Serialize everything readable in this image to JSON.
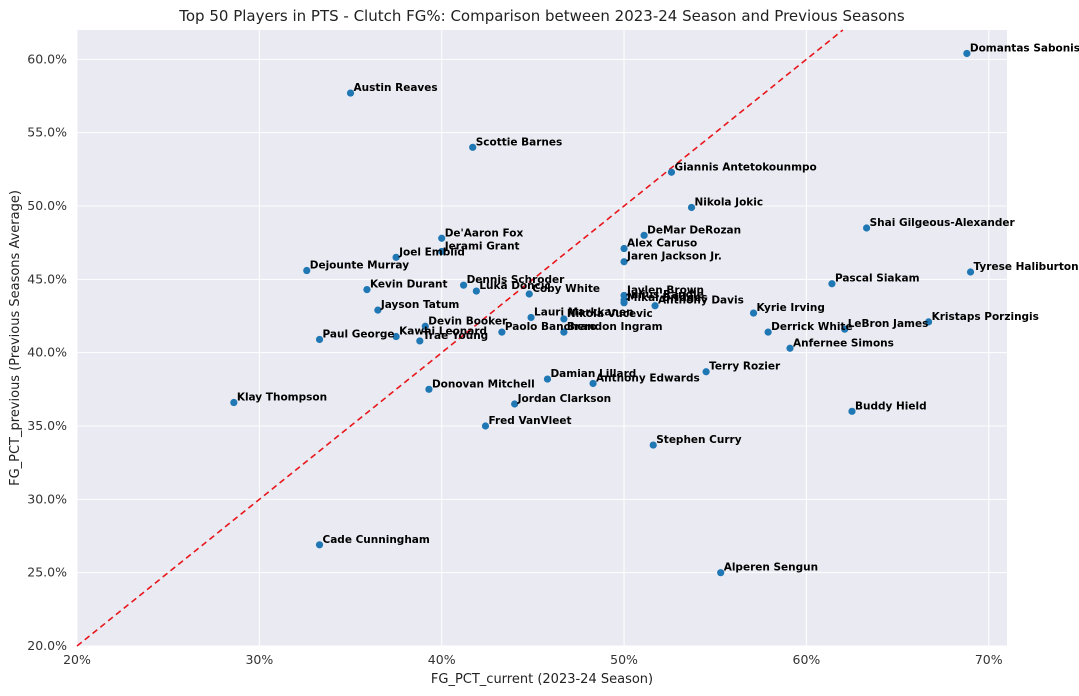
{
  "chart_data": {
    "type": "scatter",
    "title": "Top 50 Players in PTS - Clutch FG%: Comparison between 2023-24 Season and Previous Seasons",
    "xlabel": "FG_PCT_current (2023-24 Season)",
    "ylabel": "FG_PCT_previous (Previous Seasons Average)",
    "xlim": [
      0.2,
      0.71
    ],
    "ylim": [
      0.2,
      0.62
    ],
    "x_ticks": [
      0.2,
      0.3,
      0.4,
      0.5,
      0.6,
      0.7
    ],
    "x_tick_labels": [
      "20%",
      "30%",
      "40%",
      "50%",
      "60%",
      "70%"
    ],
    "y_ticks": [
      0.2,
      0.25,
      0.3,
      0.35,
      0.4,
      0.45,
      0.5,
      0.55,
      0.6
    ],
    "y_tick_labels": [
      "20.0%",
      "25.0%",
      "30.0%",
      "35.0%",
      "40.0%",
      "45.0%",
      "50.0%",
      "55.0%",
      "60.0%"
    ],
    "grid": true,
    "reference_line": {
      "label": "y = x",
      "color": "#e8161b",
      "style": "dashed"
    },
    "point_color": "#1f77b4",
    "background": "#eaeaf2",
    "points": [
      {
        "name": "Domantas Sabonis",
        "x": 0.688,
        "y": 0.604
      },
      {
        "name": "Austin Reaves",
        "x": 0.35,
        "y": 0.577
      },
      {
        "name": "Scottie Barnes",
        "x": 0.417,
        "y": 0.54
      },
      {
        "name": "Giannis Antetokounmpo",
        "x": 0.526,
        "y": 0.523
      },
      {
        "name": "Nikola Jokic",
        "x": 0.537,
        "y": 0.499
      },
      {
        "name": "Shai Gilgeous-Alexander",
        "x": 0.633,
        "y": 0.485
      },
      {
        "name": "DeMar DeRozan",
        "x": 0.511,
        "y": 0.48
      },
      {
        "name": "De'Aaron Fox",
        "x": 0.4,
        "y": 0.478
      },
      {
        "name": "Alex Caruso",
        "x": 0.5,
        "y": 0.471
      },
      {
        "name": "Jerami Grant",
        "x": 0.4,
        "y": 0.469
      },
      {
        "name": "Joel Embiid",
        "x": 0.375,
        "y": 0.465
      },
      {
        "name": "Jaren Jackson Jr.",
        "x": 0.5,
        "y": 0.462
      },
      {
        "name": "Dejounte Murray",
        "x": 0.326,
        "y": 0.456
      },
      {
        "name": "Tyrese Haliburton",
        "x": 0.69,
        "y": 0.455
      },
      {
        "name": "Pascal Siakam",
        "x": 0.614,
        "y": 0.447
      },
      {
        "name": "Dennis Schroder",
        "x": 0.412,
        "y": 0.446
      },
      {
        "name": "Kevin Durant",
        "x": 0.359,
        "y": 0.443
      },
      {
        "name": "Luka Doncic",
        "x": 0.419,
        "y": 0.442
      },
      {
        "name": "Coby White",
        "x": 0.448,
        "y": 0.44
      },
      {
        "name": "Jaylen Brown",
        "x": 0.5,
        "y": 0.439
      },
      {
        "name": "Julius Randle",
        "x": 0.5,
        "y": 0.436
      },
      {
        "name": "Mikal Bridges",
        "x": 0.5,
        "y": 0.434
      },
      {
        "name": "Anthony Davis",
        "x": 0.517,
        "y": 0.432
      },
      {
        "name": "Jayson Tatum",
        "x": 0.365,
        "y": 0.429
      },
      {
        "name": "Kyrie Irving",
        "x": 0.571,
        "y": 0.427
      },
      {
        "name": "Lauri Markkanen",
        "x": 0.449,
        "y": 0.424
      },
      {
        "name": "Nikola Vucevic",
        "x": 0.467,
        "y": 0.423
      },
      {
        "name": "Kristaps Porzingis",
        "x": 0.667,
        "y": 0.421
      },
      {
        "name": "Devin Booker",
        "x": 0.391,
        "y": 0.418
      },
      {
        "name": "LeBron James",
        "x": 0.621,
        "y": 0.416
      },
      {
        "name": "Derrick White",
        "x": 0.579,
        "y": 0.414
      },
      {
        "name": "Paolo Banchero",
        "x": 0.433,
        "y": 0.414
      },
      {
        "name": "Brandon Ingram",
        "x": 0.467,
        "y": 0.414
      },
      {
        "name": "Kawhi Leonard",
        "x": 0.375,
        "y": 0.411
      },
      {
        "name": "Paul George",
        "x": 0.333,
        "y": 0.409
      },
      {
        "name": "Trae Young",
        "x": 0.388,
        "y": 0.408
      },
      {
        "name": "Anfernee Simons",
        "x": 0.591,
        "y": 0.403
      },
      {
        "name": "Terry Rozier",
        "x": 0.545,
        "y": 0.387
      },
      {
        "name": "Damian Lillard",
        "x": 0.458,
        "y": 0.382
      },
      {
        "name": "Anthony Edwards",
        "x": 0.483,
        "y": 0.379
      },
      {
        "name": "Donovan Mitchell",
        "x": 0.393,
        "y": 0.375
      },
      {
        "name": "Klay Thompson",
        "x": 0.286,
        "y": 0.366
      },
      {
        "name": "Jordan Clarkson",
        "x": 0.44,
        "y": 0.365
      },
      {
        "name": "Buddy Hield",
        "x": 0.625,
        "y": 0.36
      },
      {
        "name": "Fred VanVleet",
        "x": 0.424,
        "y": 0.35
      },
      {
        "name": "Stephen Curry",
        "x": 0.516,
        "y": 0.337
      },
      {
        "name": "Cade Cunningham",
        "x": 0.333,
        "y": 0.269
      },
      {
        "name": "Alperen Sengun",
        "x": 0.553,
        "y": 0.25
      }
    ]
  }
}
